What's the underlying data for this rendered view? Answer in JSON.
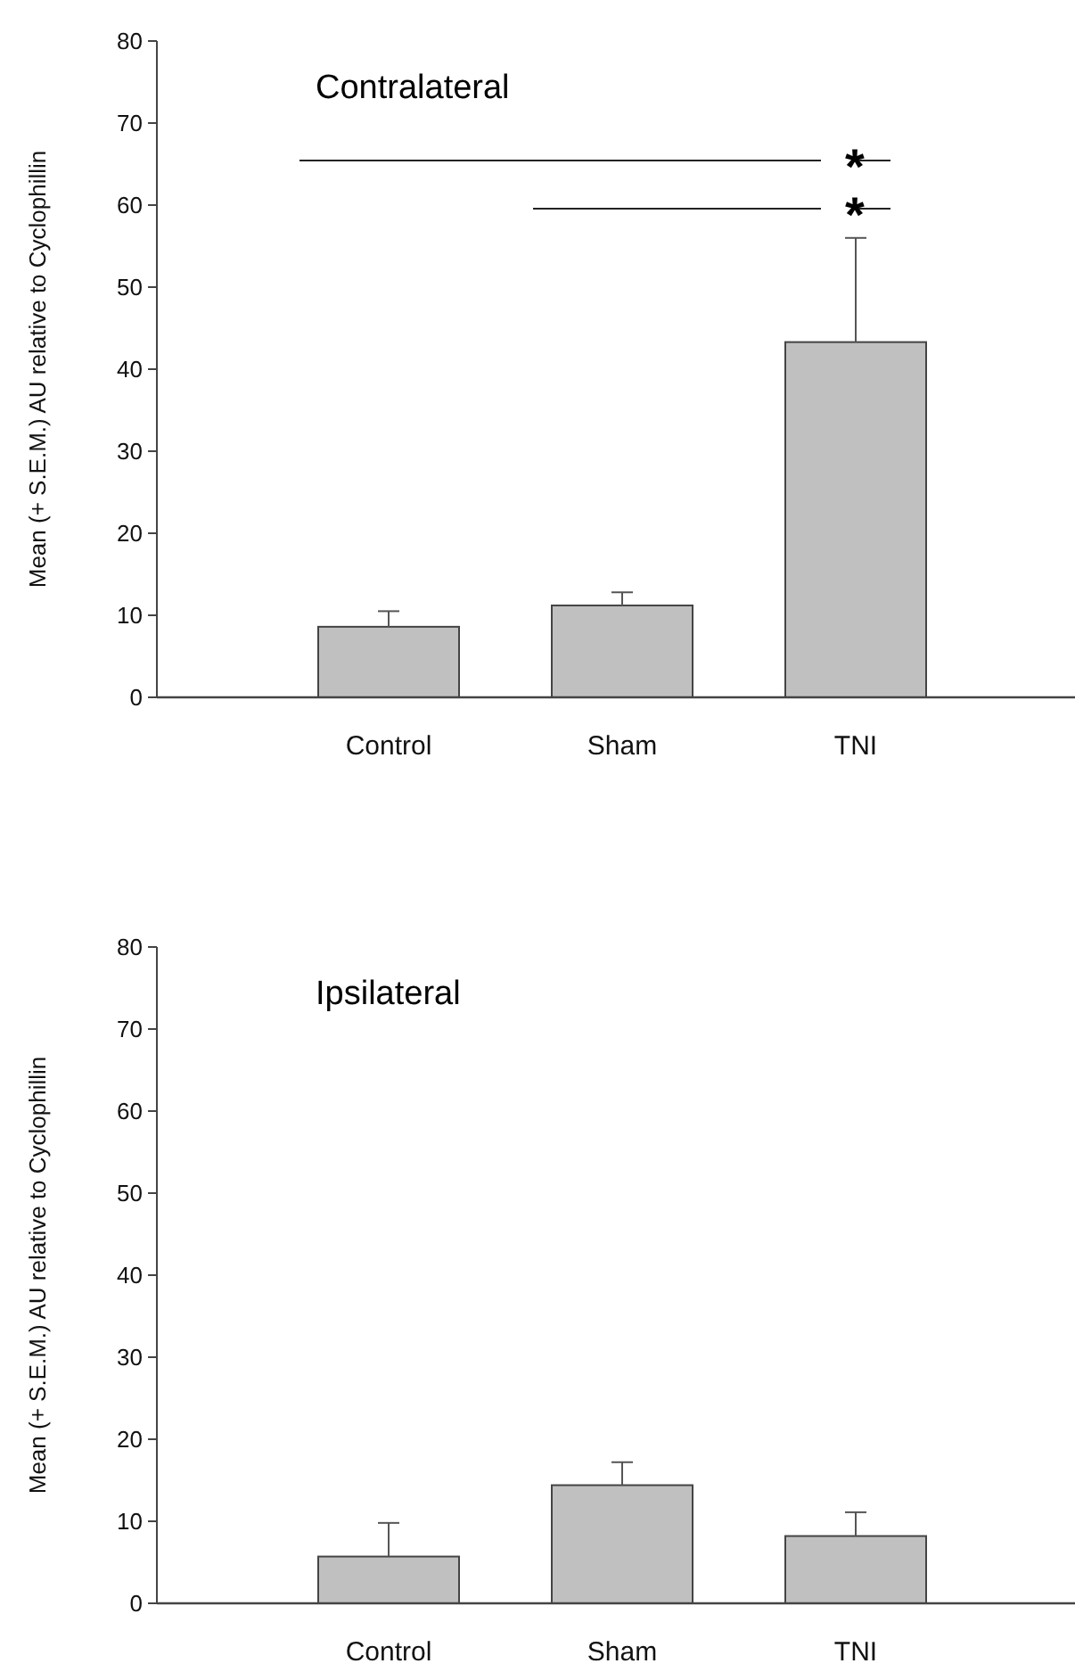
{
  "chart_data": [
    {
      "type": "bar",
      "title": "Contralateral",
      "ylabel": "Mean (+ S.E.M.) AU relative to Cyclophillin",
      "categories": [
        "Control",
        "Sham",
        "TNI"
      ],
      "values": [
        8.6,
        11.2,
        43.3
      ],
      "errors": [
        1.9,
        1.6,
        12.7
      ],
      "color": "#c0c0c0",
      "ylim": [
        0,
        80
      ],
      "yticks": [
        0,
        10,
        20,
        30,
        40,
        50,
        60,
        70,
        80
      ],
      "annotations": [
        "*",
        "*"
      ]
    },
    {
      "type": "bar",
      "title": "Ipsilateral",
      "ylabel": "Mean (+ S.E.M.) AU relative to Cyclophillin",
      "categories": [
        "Control",
        "Sham",
        "TNI"
      ],
      "values": [
        5.7,
        14.4,
        8.2
      ],
      "errors": [
        4.1,
        2.8,
        2.9
      ],
      "color": "#c0c0c0",
      "ylim": [
        0,
        80
      ],
      "yticks": [
        0,
        10,
        20,
        30,
        40,
        50,
        60,
        70,
        80
      ]
    }
  ]
}
